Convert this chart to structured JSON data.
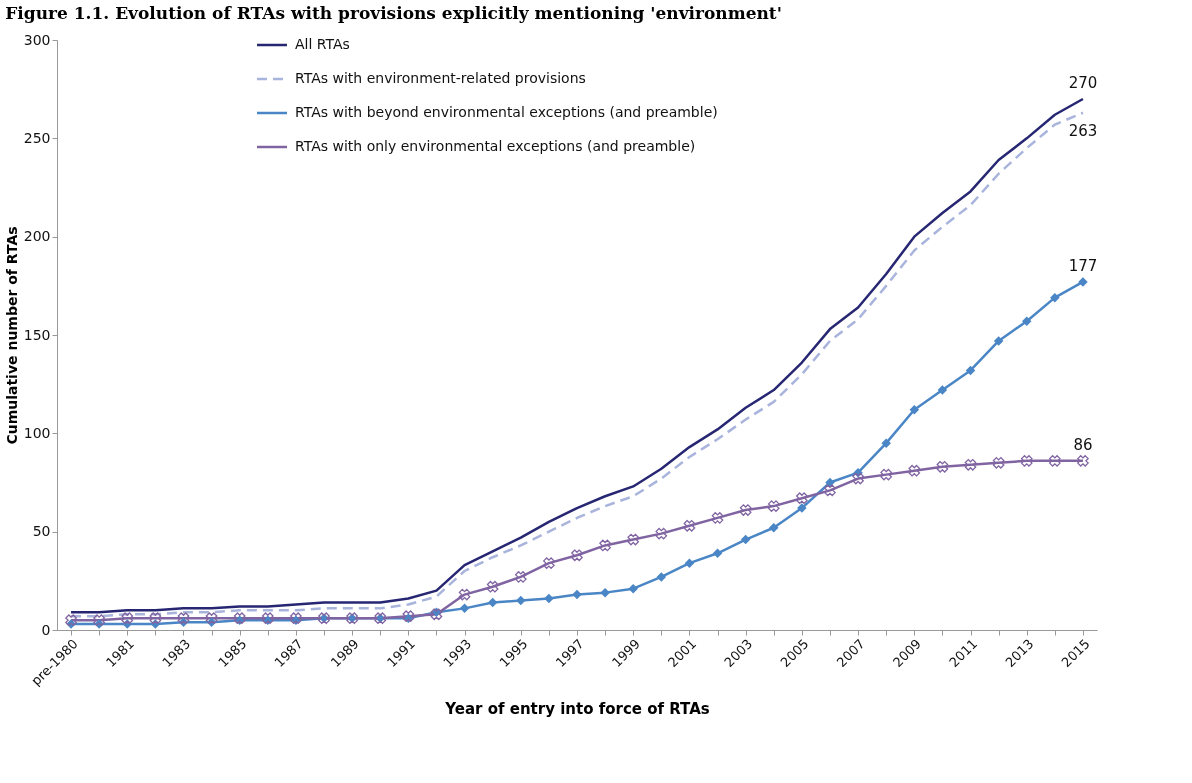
{
  "chart_data": {
    "type": "line",
    "title": "Figure 1.1. Evolution of RTAs with provisions explicitly mentioning 'environment'",
    "xlabel": "Year of entry into force of RTAs",
    "ylabel": "Cumulative number of RTAs",
    "categories": [
      "pre-1980",
      null,
      "1981",
      null,
      "1983",
      null,
      "1985",
      null,
      "1987",
      null,
      "1989",
      null,
      "1991",
      null,
      "1993",
      null,
      "1995",
      null,
      "1997",
      null,
      "1999",
      null,
      "2001",
      null,
      "2003",
      null,
      "2005",
      null,
      "2007",
      null,
      "2009",
      null,
      "2011",
      null,
      "2013",
      null,
      "2015"
    ],
    "ylim": [
      0,
      300
    ],
    "yticks": [
      0,
      50,
      100,
      150,
      200,
      250,
      300
    ],
    "grid": false,
    "legend": "top left",
    "series": [
      {
        "name": "All RTAs",
        "color": "#262673",
        "line_style": "solid",
        "marker": "none",
        "values": [
          9,
          9,
          10,
          10,
          11,
          11,
          12,
          12,
          13,
          14,
          14,
          14,
          16,
          20,
          33,
          40,
          47,
          55,
          62,
          68,
          73,
          82,
          93,
          102,
          113,
          122,
          136,
          153,
          164,
          181,
          200,
          212,
          223,
          239,
          250,
          262,
          270
        ],
        "value_labels": [
          null,
          null,
          null,
          null,
          null,
          null,
          null,
          null,
          null,
          null,
          null,
          null,
          null,
          null,
          null,
          null,
          null,
          null,
          null,
          null,
          null,
          null,
          null,
          null,
          null,
          null,
          null,
          null,
          null,
          null,
          null,
          null,
          null,
          null,
          null,
          null,
          "270"
        ]
      },
      {
        "name": "RTAs with environment-related provisions",
        "color": "#a9b4dc",
        "line_style": "dashed",
        "marker": "none",
        "values": [
          7,
          7,
          8,
          8,
          9,
          9,
          10,
          10,
          10,
          11,
          11,
          11,
          13,
          17,
          30,
          37,
          43,
          50,
          57,
          63,
          68,
          77,
          88,
          97,
          107,
          116,
          130,
          147,
          158,
          175,
          193,
          205,
          216,
          232,
          245,
          257,
          263
        ],
        "value_labels": [
          null,
          null,
          null,
          null,
          null,
          null,
          null,
          null,
          null,
          null,
          null,
          null,
          null,
          null,
          null,
          null,
          null,
          null,
          null,
          null,
          null,
          null,
          null,
          null,
          null,
          null,
          null,
          null,
          null,
          null,
          null,
          null,
          null,
          null,
          null,
          null,
          "263"
        ]
      },
      {
        "name": "RTAs with beyond environmental exceptions (and preamble)",
        "color": "#4a86c5",
        "line_style": "solid",
        "marker": "diamond",
        "values": [
          3,
          3,
          3,
          3,
          4,
          4,
          5,
          5,
          5,
          6,
          6,
          6,
          6,
          9,
          11,
          14,
          15,
          16,
          18,
          19,
          21,
          27,
          34,
          39,
          46,
          52,
          62,
          75,
          80,
          95,
          112,
          122,
          132,
          147,
          157,
          169,
          177
        ],
        "value_labels": [
          null,
          null,
          null,
          null,
          null,
          null,
          null,
          null,
          null,
          null,
          null,
          null,
          null,
          null,
          null,
          null,
          null,
          null,
          null,
          null,
          null,
          null,
          null,
          null,
          null,
          null,
          null,
          null,
          null,
          null,
          null,
          null,
          null,
          null,
          null,
          null,
          "177"
        ]
      },
      {
        "name": "RTAs with only environmental exceptions (and preamble)",
        "color": "#8064a2",
        "line_style": "solid",
        "marker": "cross",
        "values": [
          5,
          5,
          6,
          6,
          6,
          6,
          6,
          6,
          6,
          6,
          6,
          6,
          7,
          8,
          18,
          22,
          27,
          34,
          38,
          43,
          46,
          49,
          53,
          57,
          61,
          63,
          67,
          71,
          77,
          79,
          81,
          83,
          84,
          85,
          86,
          86,
          86
        ],
        "value_labels": [
          null,
          null,
          null,
          null,
          null,
          null,
          null,
          null,
          null,
          null,
          null,
          null,
          null,
          null,
          null,
          null,
          null,
          null,
          null,
          null,
          null,
          null,
          null,
          null,
          null,
          null,
          null,
          null,
          null,
          null,
          null,
          null,
          null,
          null,
          null,
          null,
          "86"
        ]
      }
    ]
  }
}
